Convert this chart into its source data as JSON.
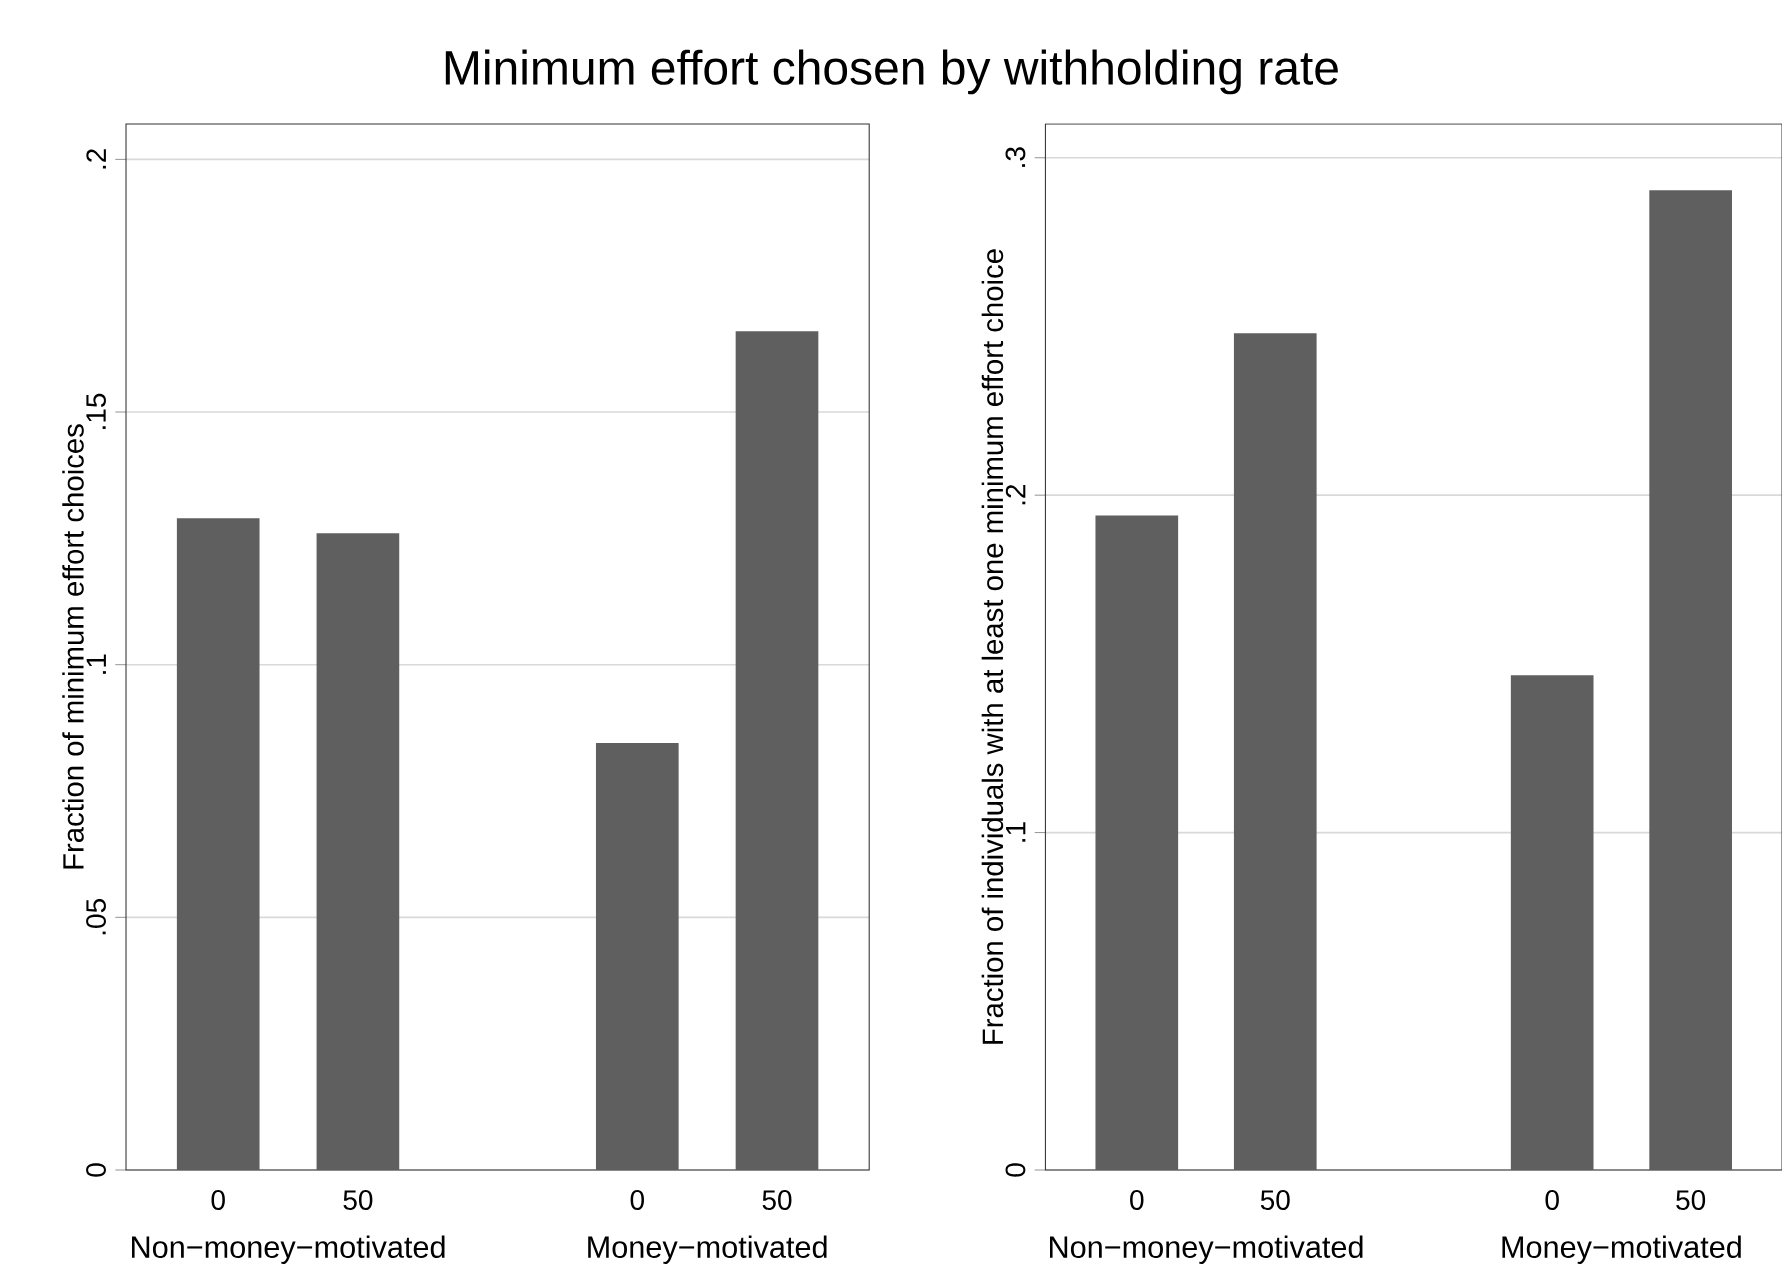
{
  "chart_data": [
    {
      "type": "bar",
      "title": "Minimum effort chosen by withholding rate",
      "ylabel": "Fraction of minimum effort choices",
      "categories": [
        "0",
        "50",
        null,
        "0",
        "50"
      ],
      "annotations": [
        "Non−money−motivated",
        "Money−motivated"
      ],
      "values": [
        0.129,
        0.126,
        null,
        0.0845,
        0.166
      ],
      "color": "#5f5f5f",
      "ylim": [
        0,
        0.207
      ],
      "yticks": [
        0,
        {
          "value": 0.05,
          "label": ".05"
        },
        {
          "value": 0.1,
          "label": ".1"
        },
        {
          "value": 0.15,
          "label": ".15"
        },
        {
          "value": 0.2,
          "label": ".2"
        }
      ],
      "grid": "y"
    },
    {
      "type": "bar",
      "ylabel": "Fraction of individuals with at least one minimum effort choice",
      "categories": [
        "0",
        "50",
        null,
        "0",
        "50"
      ],
      "annotations": [
        "Non−money−motivated",
        "Money−motivated"
      ],
      "values": [
        0.194,
        0.248,
        null,
        0.1466,
        0.2904
      ],
      "color": "#5f5f5f",
      "ylim": [
        0,
        0.31
      ],
      "yticks": [
        0,
        {
          "value": 0.1,
          "label": ".1"
        },
        {
          "value": 0.2,
          "label": ".2"
        },
        {
          "value": 0.3,
          "label": ".3"
        }
      ],
      "grid": "y"
    }
  ]
}
